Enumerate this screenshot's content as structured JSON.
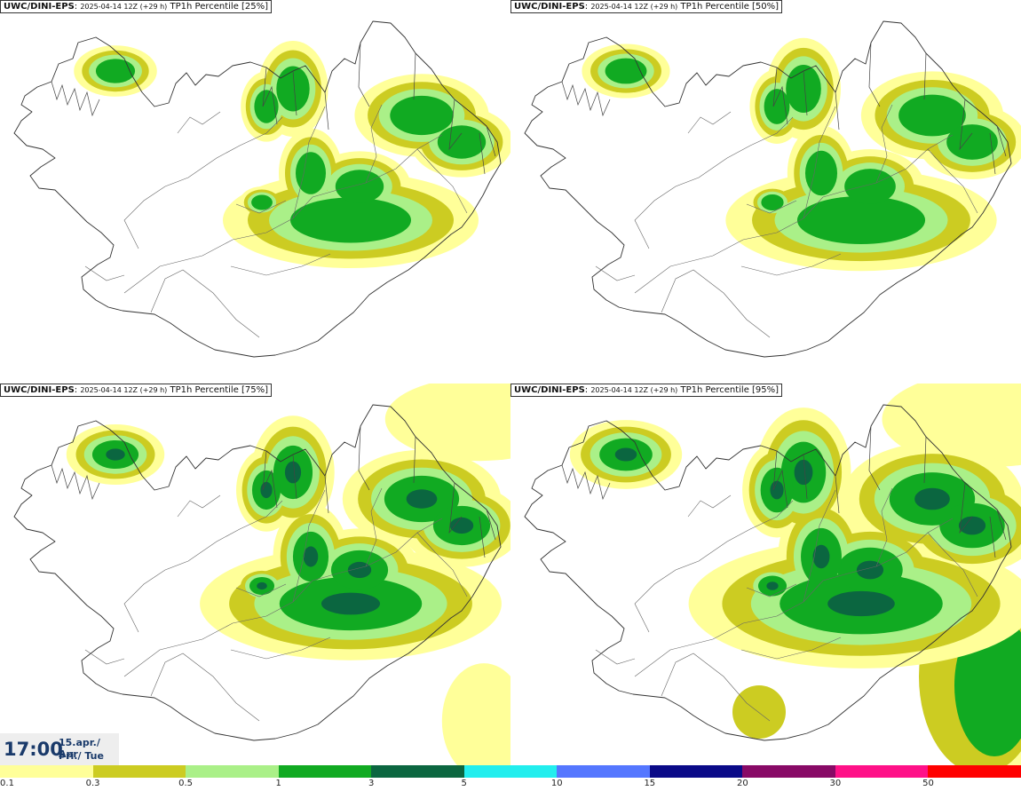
{
  "panels": [
    {
      "model": "UWC/DINI-EPS",
      "run": "2025-04-14 12Z (+29 h)",
      "field": "TP1h Percentile [25%]",
      "percentile": 25
    },
    {
      "model": "UWC/DINI-EPS",
      "run": "2025-04-14 12Z (+29 h)",
      "field": "TP1h Percentile [50%]",
      "percentile": 50
    },
    {
      "model": "UWC/DINI-EPS",
      "run": "2025-04-14 12Z (+29 h)",
      "field": "TP1h Percentile [75%]",
      "percentile": 75
    },
    {
      "model": "UWC/DINI-EPS",
      "run": "2025-04-14 12Z (+29 h)",
      "field": "TP1h Percentile [95%]",
      "percentile": 95
    }
  ],
  "valid_time": {
    "time": "17:00",
    "date": "15.apr./ Apr",
    "weekday": "Þri./ Tue"
  },
  "legend": {
    "colors": [
      "#ffff99",
      "#cccc22",
      "#aaf088",
      "#11aa22",
      "#0b6640",
      "#22eeee",
      "#5577ff",
      "#0a0a88",
      "#880a66",
      "#ff1188",
      "#ff0000"
    ],
    "labels": [
      "0.1",
      "0.3",
      "0.5",
      "1",
      "3",
      "5",
      "10",
      "15",
      "20",
      "30",
      "50"
    ]
  }
}
